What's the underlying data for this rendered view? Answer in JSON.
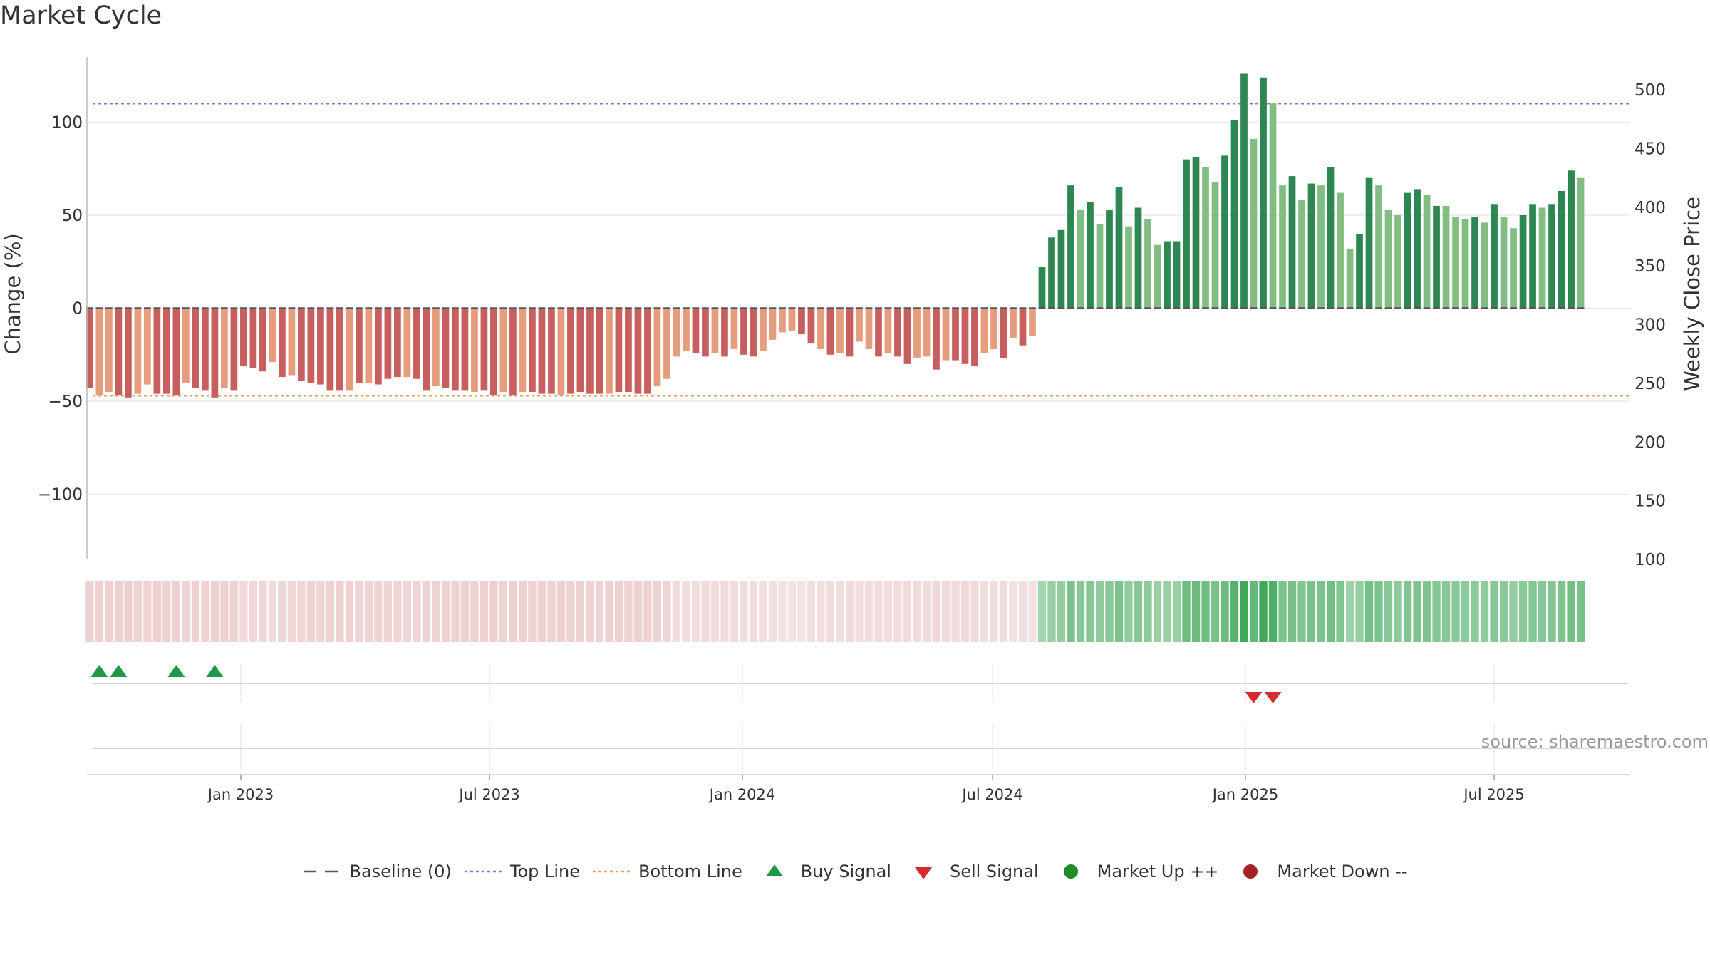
{
  "chart_data": {
    "type": "bar",
    "title": "Market Cycle",
    "ylabel_left": "Change (%)",
    "ylabel_right": "Weekly Close Price",
    "ylim_left": [
      -135,
      135
    ],
    "yticks_left": [
      100,
      50,
      0,
      -50,
      -100
    ],
    "ytick_labels_left": [
      "100",
      "50",
      "0",
      "−50",
      "−100"
    ],
    "ylim_right": [
      100,
      528
    ],
    "yticks_right": [
      500,
      450,
      400,
      350,
      300,
      250,
      200,
      150,
      100
    ],
    "ytick_labels_right": [
      "500",
      "450",
      "400",
      "350",
      "300",
      "250",
      "200",
      "150",
      "100"
    ],
    "top_line": 110,
    "bottom_line": -47,
    "baseline": 0,
    "x_start": "2022-09-11",
    "x_end": "2025-10-08",
    "first_week": "2022-09-13",
    "week_days": 7,
    "xticks": [
      "2023-01-01",
      "2023-07-01",
      "2024-01-01",
      "2024-07-01",
      "2025-01-01",
      "2025-07-01"
    ],
    "xtick_labels": [
      "Jan 2023",
      "Jul 2023",
      "Jan 2024",
      "Jul 2024",
      "Jan 2025",
      "Jul 2025"
    ],
    "weekly_change": [
      -43,
      -47,
      -45,
      -47,
      -48,
      -46,
      -41,
      -46,
      -46,
      -47,
      -40,
      -43,
      -44,
      -48,
      -43,
      -44,
      -31,
      -32,
      -34,
      -29,
      -37,
      -36,
      -39,
      -40,
      -41,
      -44,
      -44,
      -44,
      -40,
      -40,
      -41,
      -38,
      -37,
      -37,
      -38,
      -44,
      -42,
      -43,
      -44,
      -44,
      -45,
      -44,
      -47,
      -45,
      -47,
      -45,
      -45,
      -46,
      -46,
      -47,
      -46,
      -45,
      -46,
      -46,
      -46,
      -45,
      -45,
      -46,
      -46,
      -42,
      -38,
      -26,
      -23,
      -24,
      -26,
      -24,
      -26,
      -22,
      -25,
      -26,
      -23,
      -17,
      -13,
      -12,
      -14,
      -19,
      -22,
      -25,
      -24,
      -26,
      -18,
      -22,
      -26,
      -24,
      -26,
      -30,
      -27,
      -26,
      -33,
      -28,
      -28,
      -30,
      -31,
      -24,
      -22,
      -27,
      -16,
      -20,
      -15,
      22,
      38,
      42,
      66,
      53,
      57,
      45,
      53,
      65,
      44,
      54,
      48,
      34,
      36,
      36,
      80,
      81,
      76,
      68,
      82,
      101,
      126,
      91,
      124,
      110,
      66,
      71,
      58,
      67,
      66,
      76,
      62,
      32,
      40,
      70,
      66,
      53,
      50,
      62,
      64,
      61,
      55,
      55,
      49,
      48,
      49,
      46,
      56,
      49,
      43,
      50,
      56,
      54,
      56,
      63,
      74,
      70
    ],
    "weekly_strength": [
      1,
      0,
      0,
      1,
      1,
      0,
      0,
      1,
      1,
      1,
      0,
      1,
      1,
      1,
      0,
      1,
      1,
      1,
      1,
      0,
      1,
      0,
      1,
      1,
      1,
      1,
      1,
      0,
      1,
      0,
      1,
      1,
      1,
      0,
      1,
      1,
      0,
      1,
      1,
      1,
      0,
      1,
      1,
      0,
      1,
      0,
      1,
      1,
      1,
      0,
      1,
      1,
      1,
      1,
      0,
      1,
      1,
      1,
      1,
      0,
      0,
      0,
      0,
      1,
      1,
      0,
      1,
      0,
      1,
      1,
      0,
      0,
      0,
      0,
      1,
      1,
      0,
      1,
      0,
      1,
      0,
      0,
      1,
      0,
      1,
      1,
      0,
      0,
      1,
      0,
      1,
      1,
      1,
      0,
      0,
      1,
      0,
      1,
      0,
      1,
      1,
      1,
      1,
      0,
      1,
      0,
      1,
      1,
      0,
      1,
      0,
      0,
      1,
      1,
      1,
      1,
      0,
      0,
      1,
      1,
      1,
      0,
      1,
      0,
      0,
      1,
      0,
      1,
      0,
      1,
      0,
      0,
      1,
      1,
      0,
      0,
      0,
      1,
      1,
      0,
      1,
      0,
      0,
      0,
      1,
      0,
      1,
      0,
      0,
      1,
      1,
      0,
      1,
      1,
      1,
      0
    ],
    "buy_signal_weeks": [
      1,
      3,
      9,
      13
    ],
    "sell_signal_weeks": [
      121,
      123
    ],
    "source": "source: sharemaestro.com",
    "legend": [
      "Baseline (0)",
      "Top Line",
      "Bottom Line",
      "Buy Signal",
      "Sell Signal",
      "Market Up ++",
      "Market Down --"
    ],
    "colors": {
      "up_strong": "#2e8653",
      "up_weak": "#82be81",
      "down_strong": "#c85f5f",
      "down_weak": "#e69d7d",
      "top_line": "#9a6acb",
      "bottom_line": "#eda15d",
      "baseline": "#555555",
      "buy": "#1e9947",
      "sell": "#d42c2c",
      "market_up": "#1f8c26",
      "market_down": "#a32424"
    },
    "grid": true,
    "legend_position": "bottom"
  }
}
